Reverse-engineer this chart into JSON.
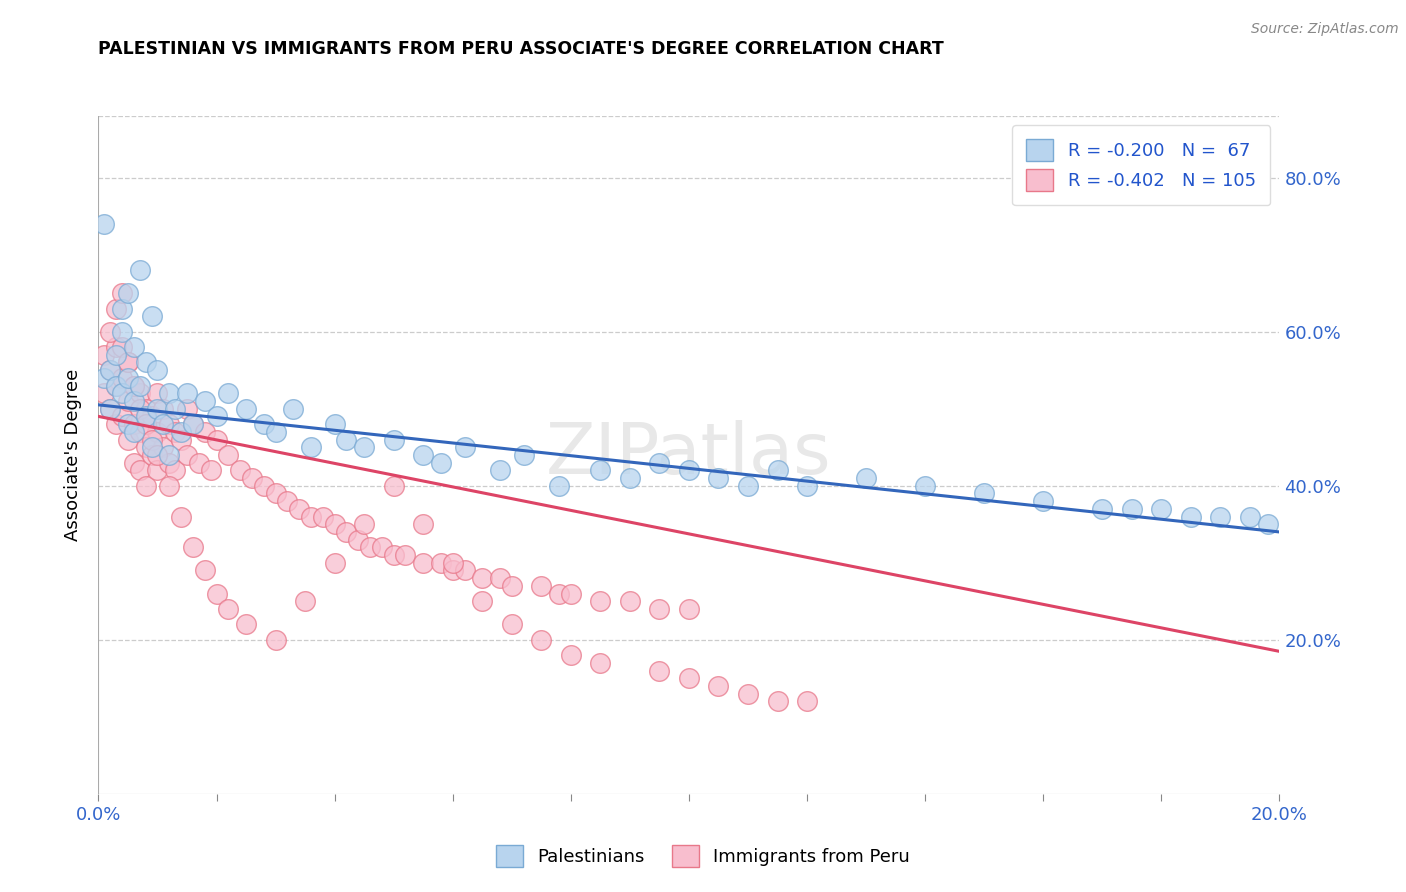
{
  "title": "PALESTINIAN VS IMMIGRANTS FROM PERU ASSOCIATE'S DEGREE CORRELATION CHART",
  "source": "Source: ZipAtlas.com",
  "ylabel": "Associate's Degree",
  "ylabel_right_ticks": [
    0.2,
    0.4,
    0.6,
    0.8
  ],
  "ylabel_right_labels": [
    "20.0%",
    "40.0%",
    "60.0%",
    "80.0%"
  ],
  "xmin": 0.0,
  "xmax": 0.2,
  "ymin": 0.0,
  "ymax": 0.88,
  "palestinians_color": "#b8d4ee",
  "palestinians_edge": "#7aaad4",
  "peru_color": "#f8bece",
  "peru_edge": "#e8788a",
  "trendline_blue": "#3366bb",
  "trendline_pink": "#dd4466",
  "watermark": "ZIPatlas",
  "blue_intercept": 0.505,
  "blue_slope": -0.825,
  "pink_intercept": 0.49,
  "pink_slope": -1.525,
  "palestinians_x": [
    0.001,
    0.002,
    0.002,
    0.003,
    0.003,
    0.004,
    0.004,
    0.004,
    0.005,
    0.005,
    0.005,
    0.006,
    0.006,
    0.006,
    0.007,
    0.007,
    0.008,
    0.008,
    0.009,
    0.009,
    0.01,
    0.01,
    0.011,
    0.012,
    0.012,
    0.013,
    0.014,
    0.015,
    0.016,
    0.018,
    0.02,
    0.022,
    0.025,
    0.028,
    0.03,
    0.033,
    0.036,
    0.04,
    0.042,
    0.045,
    0.05,
    0.055,
    0.058,
    0.062,
    0.068,
    0.072,
    0.078,
    0.085,
    0.09,
    0.095,
    0.1,
    0.105,
    0.11,
    0.115,
    0.12,
    0.13,
    0.14,
    0.15,
    0.16,
    0.17,
    0.175,
    0.18,
    0.185,
    0.19,
    0.195,
    0.198,
    0.001
  ],
  "palestinians_y": [
    0.54,
    0.55,
    0.5,
    0.53,
    0.57,
    0.52,
    0.6,
    0.63,
    0.54,
    0.48,
    0.65,
    0.51,
    0.58,
    0.47,
    0.53,
    0.68,
    0.49,
    0.56,
    0.45,
    0.62,
    0.5,
    0.55,
    0.48,
    0.52,
    0.44,
    0.5,
    0.47,
    0.52,
    0.48,
    0.51,
    0.49,
    0.52,
    0.5,
    0.48,
    0.47,
    0.5,
    0.45,
    0.48,
    0.46,
    0.45,
    0.46,
    0.44,
    0.43,
    0.45,
    0.42,
    0.44,
    0.4,
    0.42,
    0.41,
    0.43,
    0.42,
    0.41,
    0.4,
    0.42,
    0.4,
    0.41,
    0.4,
    0.39,
    0.38,
    0.37,
    0.37,
    0.37,
    0.36,
    0.36,
    0.36,
    0.35,
    0.74
  ],
  "peru_x": [
    0.001,
    0.001,
    0.002,
    0.002,
    0.003,
    0.003,
    0.003,
    0.004,
    0.004,
    0.005,
    0.005,
    0.005,
    0.006,
    0.006,
    0.006,
    0.007,
    0.007,
    0.007,
    0.008,
    0.008,
    0.008,
    0.009,
    0.009,
    0.01,
    0.01,
    0.01,
    0.011,
    0.011,
    0.012,
    0.012,
    0.013,
    0.013,
    0.014,
    0.015,
    0.015,
    0.016,
    0.017,
    0.018,
    0.019,
    0.02,
    0.022,
    0.024,
    0.026,
    0.028,
    0.03,
    0.032,
    0.034,
    0.036,
    0.038,
    0.04,
    0.042,
    0.044,
    0.046,
    0.048,
    0.05,
    0.052,
    0.055,
    0.058,
    0.06,
    0.062,
    0.065,
    0.068,
    0.07,
    0.075,
    0.078,
    0.08,
    0.085,
    0.09,
    0.095,
    0.1,
    0.002,
    0.003,
    0.004,
    0.004,
    0.005,
    0.006,
    0.007,
    0.008,
    0.009,
    0.01,
    0.012,
    0.014,
    0.016,
    0.018,
    0.02,
    0.022,
    0.025,
    0.03,
    0.035,
    0.04,
    0.045,
    0.05,
    0.055,
    0.06,
    0.065,
    0.07,
    0.075,
    0.08,
    0.085,
    0.095,
    0.1,
    0.105,
    0.11,
    0.115,
    0.12
  ],
  "peru_y": [
    0.57,
    0.52,
    0.55,
    0.5,
    0.58,
    0.53,
    0.48,
    0.54,
    0.49,
    0.56,
    0.51,
    0.46,
    0.53,
    0.48,
    0.43,
    0.52,
    0.47,
    0.42,
    0.5,
    0.45,
    0.4,
    0.49,
    0.44,
    0.52,
    0.47,
    0.42,
    0.5,
    0.45,
    0.48,
    0.43,
    0.47,
    0.42,
    0.46,
    0.5,
    0.44,
    0.48,
    0.43,
    0.47,
    0.42,
    0.46,
    0.44,
    0.42,
    0.41,
    0.4,
    0.39,
    0.38,
    0.37,
    0.36,
    0.36,
    0.35,
    0.34,
    0.33,
    0.32,
    0.32,
    0.31,
    0.31,
    0.3,
    0.3,
    0.29,
    0.29,
    0.28,
    0.28,
    0.27,
    0.27,
    0.26,
    0.26,
    0.25,
    0.25,
    0.24,
    0.24,
    0.6,
    0.63,
    0.65,
    0.58,
    0.56,
    0.53,
    0.5,
    0.48,
    0.46,
    0.44,
    0.4,
    0.36,
    0.32,
    0.29,
    0.26,
    0.24,
    0.22,
    0.2,
    0.25,
    0.3,
    0.35,
    0.4,
    0.35,
    0.3,
    0.25,
    0.22,
    0.2,
    0.18,
    0.17,
    0.16,
    0.15,
    0.14,
    0.13,
    0.12,
    0.12
  ]
}
